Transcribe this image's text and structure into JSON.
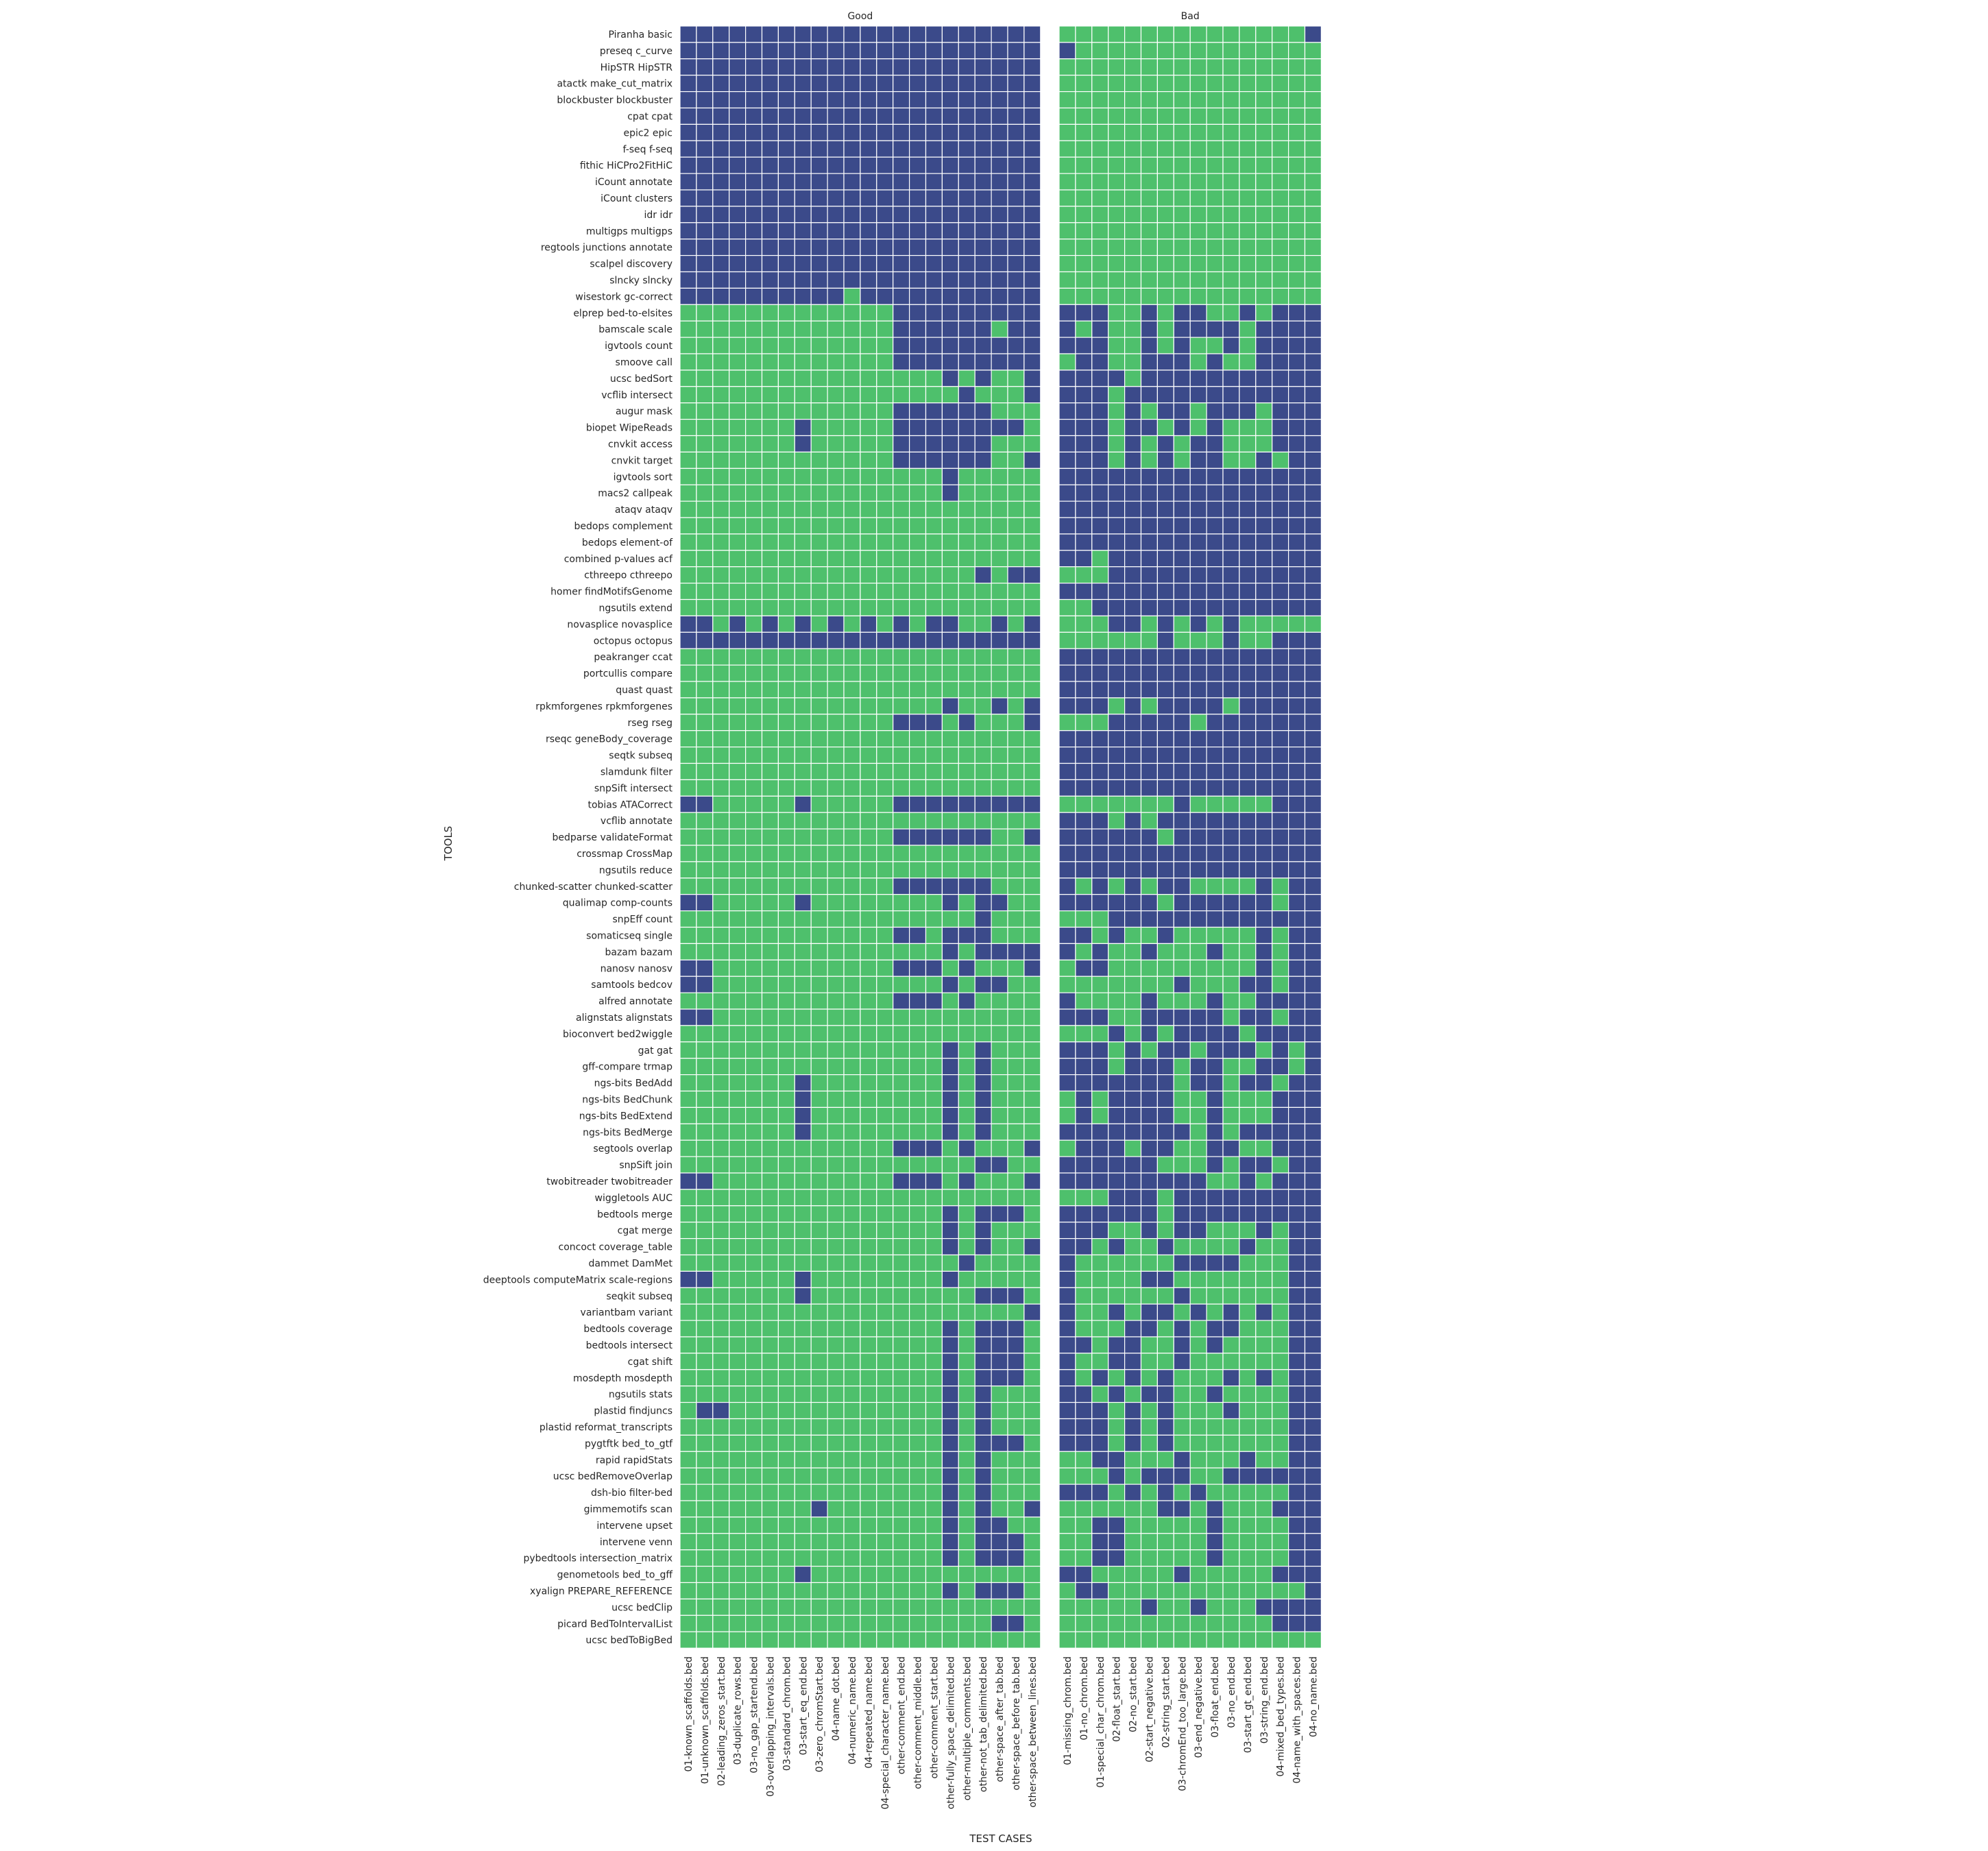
{
  "chart_data": {
    "type": "heatmap",
    "panels": [
      {
        "title": "Good",
        "columns": [
          "01-known_scaffolds.bed",
          "01-unknown_scaffolds.bed",
          "02-leading_zeros_start.bed",
          "03-duplicate_rows.bed",
          "03-no_gap_startend.bed",
          "03-overlapping_intervals.bed",
          "03-standard_chrom.bed",
          "03-start_eq_end.bed",
          "03-zero_chromStart.bed",
          "04-name_dot.bed",
          "04-numeric_name.bed",
          "04-repeated_name.bed",
          "04-special_character_name.bed",
          "other-comment_end.bed",
          "other-comment_middle.bed",
          "other-comment_start.bed",
          "other-fully_space_delimited.bed",
          "other-multiple_comments.bed",
          "other-not_tab_delimited.bed",
          "other-space_after_tab.bed",
          "other-space_before_tab.bed",
          "other-space_between_lines.bed"
        ]
      },
      {
        "title": "Bad",
        "columns": [
          "01-missing_chrom.bed",
          "01-no_chrom.bed",
          "01-special_char_chrom.bed",
          "02-float_start.bed",
          "02-no_start.bed",
          "02-start_negative.bed",
          "02-string_start.bed",
          "03-chromEnd_too_large.bed",
          "03-end_negative.bed",
          "03-float_end.bed",
          "03-no_end.bed",
          "03-start_gt_end.bed",
          "03-string_end.bed",
          "04-mixed_bed_types.bed",
          "04-name_with_spaces.bed",
          "04-no_name.bed"
        ]
      }
    ],
    "rows": [
      {
        "tool": "Piranha basic",
        "good": "1111111111111111111111",
        "bad": "0000000000000001"
      },
      {
        "tool": "preseq c_curve",
        "good": "1111111111111111111111",
        "bad": "1000000000000000"
      },
      {
        "tool": "HipSTR HipSTR",
        "good": "1111111111111111111111",
        "bad": "0000000000000000"
      },
      {
        "tool": "atactk make_cut_matrix",
        "good": "1111111111111111111111",
        "bad": "0000000000000000"
      },
      {
        "tool": "blockbuster blockbuster",
        "good": "1111111111111111111111",
        "bad": "0000000000000000"
      },
      {
        "tool": "cpat cpat",
        "good": "1111111111111111111111",
        "bad": "0000000000000000"
      },
      {
        "tool": "epic2 epic",
        "good": "1111111111111111111111",
        "bad": "0000000000000000"
      },
      {
        "tool": "f-seq f-seq",
        "good": "1111111111111111111111",
        "bad": "0000000000000000"
      },
      {
        "tool": "fithic HiCPro2FitHiC",
        "good": "1111111111111111111111",
        "bad": "0000000000000000"
      },
      {
        "tool": "iCount annotate",
        "good": "1111111111111111111111",
        "bad": "0000000000000000"
      },
      {
        "tool": "iCount clusters",
        "good": "1111111111111111111111",
        "bad": "0000000000000000"
      },
      {
        "tool": "idr idr",
        "good": "1111111111111111111111",
        "bad": "0000000000000000"
      },
      {
        "tool": "multigps multigps",
        "good": "1111111111111111111111",
        "bad": "0000000000000000"
      },
      {
        "tool": "regtools junctions annotate",
        "good": "1111111111111111111111",
        "bad": "0000000000000000"
      },
      {
        "tool": "scalpel discovery",
        "good": "1111111111111111111111",
        "bad": "0000000000000000"
      },
      {
        "tool": "slncky slncky",
        "good": "1111111111111111111111",
        "bad": "0000000000000000"
      },
      {
        "tool": "wisestork gc-correct",
        "good": "1111111111011111111111",
        "bad": "0000000000000000"
      },
      {
        "tool": "elprep bed-to-elsites",
        "good": "0000000000000111111111",
        "bad": "1110010110010111"
      },
      {
        "tool": "bamscale scale",
        "good": "0000000000000111111011",
        "bad": "1010010111101111"
      },
      {
        "tool": "igvtools count",
        "good": "0000000000000111111111",
        "bad": "1110010100101111"
      },
      {
        "tool": "smoove call",
        "good": "0000000000000111111111",
        "bad": "0110011101001111"
      },
      {
        "tool": "ucsc bedSort",
        "good": "0000000000000000101001",
        "bad": "1111011111111111"
      },
      {
        "tool": "vcflib intersect",
        "good": "0000000000000000010001",
        "bad": "1110111111111111"
      },
      {
        "tool": "augur mask",
        "good": "0000000000000111111000",
        "bad": "1110101101110111"
      },
      {
        "tool": "biopet WipeReads",
        "good": "0000000100000111111110",
        "bad": "1110110101000111"
      },
      {
        "tool": "cnvkit access",
        "good": "0000000100000111111000",
        "bad": "1110101011000111"
      },
      {
        "tool": "cnvkit target",
        "good": "0000000000000111111001",
        "bad": "1110101011001011"
      },
      {
        "tool": "igvtools sort",
        "good": "0000000000000000100000",
        "bad": "1111111111111111"
      },
      {
        "tool": "macs2 callpeak",
        "good": "0000000000000000100000",
        "bad": "1111111111111111"
      },
      {
        "tool": "ataqv ataqv",
        "good": "0000000000000000000000",
        "bad": "1111111111111111"
      },
      {
        "tool": "bedops complement",
        "good": "0000000000000000000000",
        "bad": "1111111111111111"
      },
      {
        "tool": "bedops element-of",
        "good": "0000000000000000000000",
        "bad": "1111111111111111"
      },
      {
        "tool": "combined p-values acf",
        "good": "0000000000000000000000",
        "bad": "1101111111111111"
      },
      {
        "tool": "cthreepo cthreepo",
        "good": "0000000000000000001011",
        "bad": "0001111111111111"
      },
      {
        "tool": "homer findMotifsGenome",
        "good": "0000000000000000000000",
        "bad": "1111111111111111"
      },
      {
        "tool": "ngsutils extend",
        "good": "0000000000000000000000",
        "bad": "0011111111111111"
      },
      {
        "tool": "novasplice novasplice",
        "good": "1101010101010101100101",
        "bad": "0001101010100000"
      },
      {
        "tool": "octopus octopus",
        "good": "1111111111111111111111",
        "bad": "0000001000100111"
      },
      {
        "tool": "peakranger ccat",
        "good": "0000000000000000000000",
        "bad": "1111111111111111"
      },
      {
        "tool": "portcullis compare",
        "good": "0000000000000000000000",
        "bad": "1111111111111111"
      },
      {
        "tool": "quast quast",
        "good": "0000000000000000000000",
        "bad": "1111111111111111"
      },
      {
        "tool": "rpkmforgenes rpkmforgenes",
        "good": "0000000000000000100101",
        "bad": "1110101111011111"
      },
      {
        "tool": "rseg rseg",
        "good": "0000000000000111010001",
        "bad": "0001111101111111"
      },
      {
        "tool": "rseqc geneBody_coverage",
        "good": "0000000000000000000000",
        "bad": "1111111111111111"
      },
      {
        "tool": "seqtk subseq",
        "good": "0000000000000000000000",
        "bad": "1111111111111111"
      },
      {
        "tool": "slamdunk filter",
        "good": "0000000000000000000000",
        "bad": "1111111111111111"
      },
      {
        "tool": "snpSift intersect",
        "good": "0000000000000000000000",
        "bad": "1111111111111111"
      },
      {
        "tool": "tobias ATACorrect",
        "good": "1100000100000111111111",
        "bad": "0000000100000111"
      },
      {
        "tool": "vcflib annotate",
        "good": "0000000000000000000000",
        "bad": "1110101111111111"
      },
      {
        "tool": "bedparse validateFormat",
        "good": "0000000000000111111001",
        "bad": "1111110111111111"
      },
      {
        "tool": "crossmap CrossMap",
        "good": "0000000000000000000000",
        "bad": "1111111111111111"
      },
      {
        "tool": "ngsutils reduce",
        "good": "0000000000000000000000",
        "bad": "1111111111111111"
      },
      {
        "tool": "chunked-scatter chunked-scatter",
        "good": "0000000000000111111000",
        "bad": "1010101100001011"
      },
      {
        "tool": "qualimap comp-counts",
        "good": "1100000100000000101100",
        "bad": "1111110111111011"
      },
      {
        "tool": "snpEff count",
        "good": "0000000000000000001000",
        "bad": "0001111111111111"
      },
      {
        "tool": "somaticseq single",
        "good": "0000000000000110111000",
        "bad": "1101001000001011"
      },
      {
        "tool": "bazam bazam",
        "good": "0000000000000000101111",
        "bad": "1010010001001011"
      },
      {
        "tool": "nanosv nanosv",
        "good": "1100000000000111010001",
        "bad": "0110000000001011"
      },
      {
        "tool": "samtools bedcov",
        "good": "1100000000000000101100",
        "bad": "0000000100011011"
      },
      {
        "tool": "alfred annotate",
        "good": "0000000000000111010000",
        "bad": "1000010001001111"
      },
      {
        "tool": "alignstats alignstats",
        "good": "1100000000000000000000",
        "bad": "1110011111011011"
      },
      {
        "tool": "bioconvert bed2wiggle",
        "good": "0000000000000000000000",
        "bad": "0001010111101111"
      },
      {
        "tool": "gat gat",
        "good": "0000000000000000101000",
        "bad": "1110101101110101"
      },
      {
        "tool": "gff-compare trmap",
        "good": "0000000000000000101000",
        "bad": "1110111011001101"
      },
      {
        "tool": "ngs-bits BedAdd",
        "good": "0000000100000000101000",
        "bad": "1111111011011011"
      },
      {
        "tool": "ngs-bits BedChunk",
        "good": "0000000100000000101000",
        "bad": "0101111001000111"
      },
      {
        "tool": "ngs-bits BedExtend",
        "good": "0000000100000000101000",
        "bad": "0101111001000111"
      },
      {
        "tool": "ngs-bits BedMerge",
        "good": "0000000100000000101000",
        "bad": "1111111101011111"
      },
      {
        "tool": "segtools overlap",
        "good": "0000000000000111010001",
        "bad": "0111011001100111"
      },
      {
        "tool": "snpSift join",
        "good": "0000000000000000001100",
        "bad": "1111110001011011"
      },
      {
        "tool": "twobitreader twobitreader",
        "good": "1100000000000111010001",
        "bad": "1111111110010111"
      },
      {
        "tool": "wiggletools AUC",
        "good": "0000000000000000000000",
        "bad": "0001110111111111"
      },
      {
        "tool": "bedtools merge",
        "good": "0000000000000000101110",
        "bad": "1111110111111111"
      },
      {
        "tool": "cgat merge",
        "good": "0000000000000000101000",
        "bad": "1110010110001011"
      },
      {
        "tool": "concoct coverage_table",
        "good": "0000000000000000101001",
        "bad": "1101001000010011"
      },
      {
        "tool": "dammet DamMet",
        "good": "0000000000000000010000",
        "bad": "1000000111100011"
      },
      {
        "tool": "deeptools computeMatrix scale-regions",
        "good": "1100000100000000100000",
        "bad": "1000011000000011"
      },
      {
        "tool": "seqkit subseq",
        "good": "0000000100000000001110",
        "bad": "1000000100000011"
      },
      {
        "tool": "variantbam variant",
        "good": "0000000000000000000001",
        "bad": "1001011010101011"
      },
      {
        "tool": "bedtools coverage",
        "good": "0000000000000000101110",
        "bad": "1000110101100011"
      },
      {
        "tool": "bedtools intersect",
        "good": "0000000000000000101110",
        "bad": "1101100101000011"
      },
      {
        "tool": "cgat shift",
        "good": "0000000000000000101110",
        "bad": "1001100100000011"
      },
      {
        "tool": "mosdepth mosdepth",
        "good": "0000000000000000101110",
        "bad": "1010101000101011"
      },
      {
        "tool": "ngsutils stats",
        "good": "0000000000000000101000",
        "bad": "1101011001000011"
      },
      {
        "tool": "plastid findjuncs",
        "good": "0110000000000000101000",
        "bad": "1110101000100011"
      },
      {
        "tool": "plastid reformat_transcripts",
        "good": "0000000000000000101000",
        "bad": "1110101000000011"
      },
      {
        "tool": "pygtftk bed_to_gtf",
        "good": "0000000000000000101110",
        "bad": "1110101000000011"
      },
      {
        "tool": "rapid rapidStats",
        "good": "0000000000000000101000",
        "bad": "0011000100010011"
      },
      {
        "tool": "ucsc bedRemoveOverlap",
        "good": "0000000000000000101000",
        "bad": "0001011100111111"
      },
      {
        "tool": "dsh-bio filter-bed",
        "good": "0000000000000000101000",
        "bad": "1110101010000011"
      },
      {
        "tool": "gimmemotifs scan",
        "good": "0000000010000000101001",
        "bad": "0000001101000111"
      },
      {
        "tool": "intervene upset",
        "good": "0000000000000000101100",
        "bad": "0011000001000011"
      },
      {
        "tool": "intervene venn",
        "good": "0000000000000000101110",
        "bad": "0011000001000011"
      },
      {
        "tool": "pybedtools intersection_matrix",
        "good": "0000000000000000101110",
        "bad": "0011000001000011"
      },
      {
        "tool": "genometools bed_to_gff",
        "good": "0000000100000000000000",
        "bad": "1100000100000111"
      },
      {
        "tool": "xyalign PREPARE_REFERENCE",
        "good": "0000000000000000101110",
        "bad": "0110000000000001"
      },
      {
        "tool": "ucsc bedClip",
        "good": "0000000000000000000000",
        "bad": "0000010010001111"
      },
      {
        "tool": "picard BedToIntervalList",
        "good": "0000000000000000000110",
        "bad": "0000000000000111"
      },
      {
        "tool": "ucsc bedToBigBed",
        "good": "0000000000000000000000",
        "bad": "0000000000000000"
      }
    ],
    "value_legend": {
      "1": "dark navy cell",
      "0": "green cell"
    },
    "colors": {
      "1": "#3b4a8a",
      "0": "#4ec06c",
      "grid": "#ffffff"
    },
    "xlabel": "TEST CASES",
    "ylabel": "TOOLS",
    "legend": "none"
  }
}
